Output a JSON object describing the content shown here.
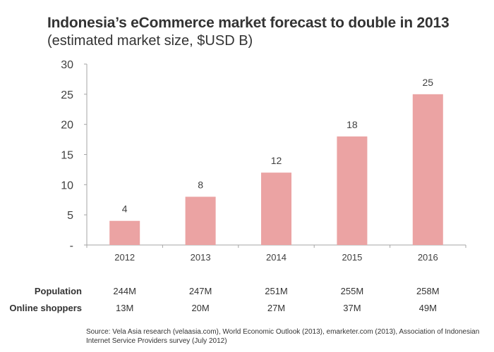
{
  "chart_data": {
    "type": "bar",
    "title": "Indonesia’s eCommerce market forecast to double in 2013",
    "subtitle": "(estimated market size, $USD B)",
    "xlabel": "",
    "ylabel": "",
    "categories": [
      "2012",
      "2013",
      "2014",
      "2015",
      "2016"
    ],
    "values": [
      4,
      8,
      12,
      18,
      25
    ],
    "data_labels": [
      "4",
      "8",
      "12",
      "18",
      "25"
    ],
    "ylim": [
      0,
      30
    ],
    "yticks": [
      0,
      5,
      10,
      15,
      20,
      25,
      30
    ],
    "ytick_labels": [
      "-",
      "5",
      "10",
      "15",
      "20",
      "25",
      "30"
    ],
    "grid": false,
    "bar_color": "#EBA3A3"
  },
  "table": {
    "rows": [
      {
        "label": "Population",
        "values": [
          "244M",
          "247M",
          "251M",
          "255M",
          "258M"
        ]
      },
      {
        "label": "Online shoppers",
        "values": [
          "13M",
          "20M",
          "27M",
          "37M",
          "49M"
        ]
      }
    ]
  },
  "source": "Source: Vela Asia research (velaasia.com), World Economic Outlook (2013), emarketer.com (2013), Association of Indonesian Internet Service Providers survey (July 2012)"
}
